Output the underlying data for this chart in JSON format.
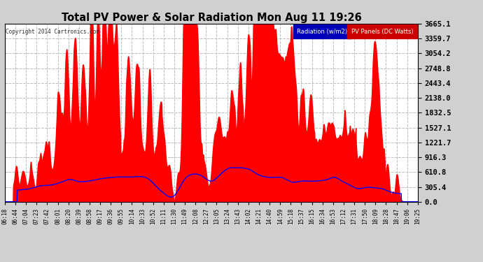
{
  "title": "Total PV Power & Solar Radiation Mon Aug 11 19:26",
  "copyright": "Copyright 2014 Cartronics.com",
  "ylim": [
    0,
    3665.1
  ],
  "yticks": [
    0.0,
    305.4,
    610.8,
    916.3,
    1221.7,
    1527.1,
    1832.5,
    2138.0,
    2443.4,
    2748.8,
    3054.2,
    3359.7,
    3665.1
  ],
  "bg_color": "#d0d0d0",
  "plot_bg_color": "#ffffff",
  "grid_color": "#bbbbbb",
  "red_fill_color": "#ff0000",
  "blue_line_color": "#0000ff",
  "title_color": "#000000",
  "x_labels": [
    "06:18",
    "06:44",
    "07:04",
    "07:23",
    "07:42",
    "08:01",
    "08:20",
    "08:39",
    "08:58",
    "09:17",
    "09:36",
    "09:55",
    "10:14",
    "10:33",
    "10:52",
    "11:11",
    "11:30",
    "11:49",
    "12:08",
    "12:27",
    "13:05",
    "13:24",
    "13:43",
    "14:02",
    "14:21",
    "14:40",
    "14:59",
    "15:18",
    "15:37",
    "16:15",
    "16:34",
    "16:53",
    "17:12",
    "17:31",
    "17:50",
    "18:09",
    "18:28",
    "18:47",
    "19:06",
    "19:25"
  ]
}
